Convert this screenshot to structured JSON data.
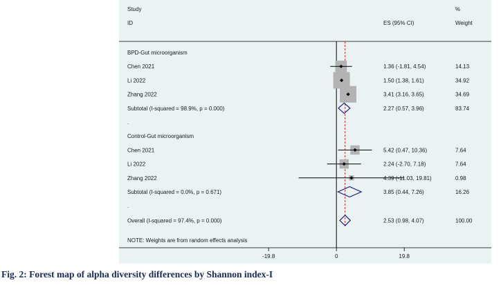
{
  "caption": "Fig. 2: Forest map of alpha diversity differences by Shannon index-I",
  "chart_data": {
    "type": "forest",
    "headers": {
      "study_top": "Study",
      "study_bottom": "ID",
      "es": "ES (95% CI)",
      "weight_top": "%",
      "weight_bottom": "Weight"
    },
    "xaxis": {
      "ticks": [
        -19.8,
        0,
        19.8
      ],
      "tick_labels": [
        "-19.8",
        "0",
        "19.8"
      ],
      "range": [
        -37,
        44
      ],
      "null_line": 0,
      "overall_line": 2.53
    },
    "rows": [
      {
        "kind": "group",
        "label": "BPD-Gut microorganism"
      },
      {
        "kind": "study",
        "label": "Chen 2021",
        "es": 1.36,
        "lo": -1.81,
        "hi": 4.54,
        "ci": "1.36 (-1.81, 4.54)",
        "weight": 14.13,
        "weight_label": "14.13"
      },
      {
        "kind": "study",
        "label": "Li 2022",
        "es": 1.5,
        "lo": 1.38,
        "hi": 1.61,
        "ci": "1.50 (1.38, 1.61)",
        "weight": 34.92,
        "weight_label": "34.92"
      },
      {
        "kind": "study",
        "label": "Zhang 2022",
        "es": 3.41,
        "lo": 3.16,
        "hi": 3.65,
        "ci": "3.41 (3.16, 3.65)",
        "weight": 34.69,
        "weight_label": "34.69"
      },
      {
        "kind": "subtotal",
        "label": "Subtotal  (I-squared = 98.9%, p = 0.000)",
        "es": 2.27,
        "lo": 0.57,
        "hi": 3.96,
        "ci": "2.27 (0.57, 3.96)",
        "weight_label": "83.74"
      },
      {
        "kind": "spacer",
        "label": "."
      },
      {
        "kind": "group",
        "label": "Control-Gut microorganism"
      },
      {
        "kind": "study",
        "label": "Chen 2021",
        "es": 5.42,
        "lo": 0.47,
        "hi": 10.36,
        "ci": "5.42 (0.47, 10.36)",
        "weight": 7.64,
        "weight_label": "7.64"
      },
      {
        "kind": "study",
        "label": "Li 2022",
        "es": 2.24,
        "lo": -2.7,
        "hi": 7.18,
        "ci": "2.24 (-2.70, 7.18)",
        "weight": 7.64,
        "weight_label": "7.64"
      },
      {
        "kind": "study",
        "label": "Zhang 2022",
        "es": 4.39,
        "lo": -11.03,
        "hi": 19.81,
        "ci": "4.39 (-11.03, 19.81)",
        "weight": 0.98,
        "weight_label": "0.98"
      },
      {
        "kind": "subtotal",
        "label": "Subtotal  (I-squared = 0.0%, p = 0.671)",
        "es": 3.85,
        "lo": 0.44,
        "hi": 7.26,
        "ci": "3.85 (0.44, 7.26)",
        "weight_label": "16.26"
      },
      {
        "kind": "spacer",
        "label": "."
      },
      {
        "kind": "overall",
        "label": "Overall  (I-squared = 97.4%, p = 0.000)",
        "es": 2.53,
        "lo": 0.98,
        "hi": 4.07,
        "ci": "2.53 (0.98, 4.07)",
        "weight_label": "100.00"
      }
    ],
    "note": "NOTE: Weights are from random effects analysis",
    "colors": {
      "panel": "#eaf2f3",
      "box": "#b3b3b3",
      "diamond": "#1a237e",
      "overall_line": "#c62828",
      "axis": "#000000"
    }
  }
}
